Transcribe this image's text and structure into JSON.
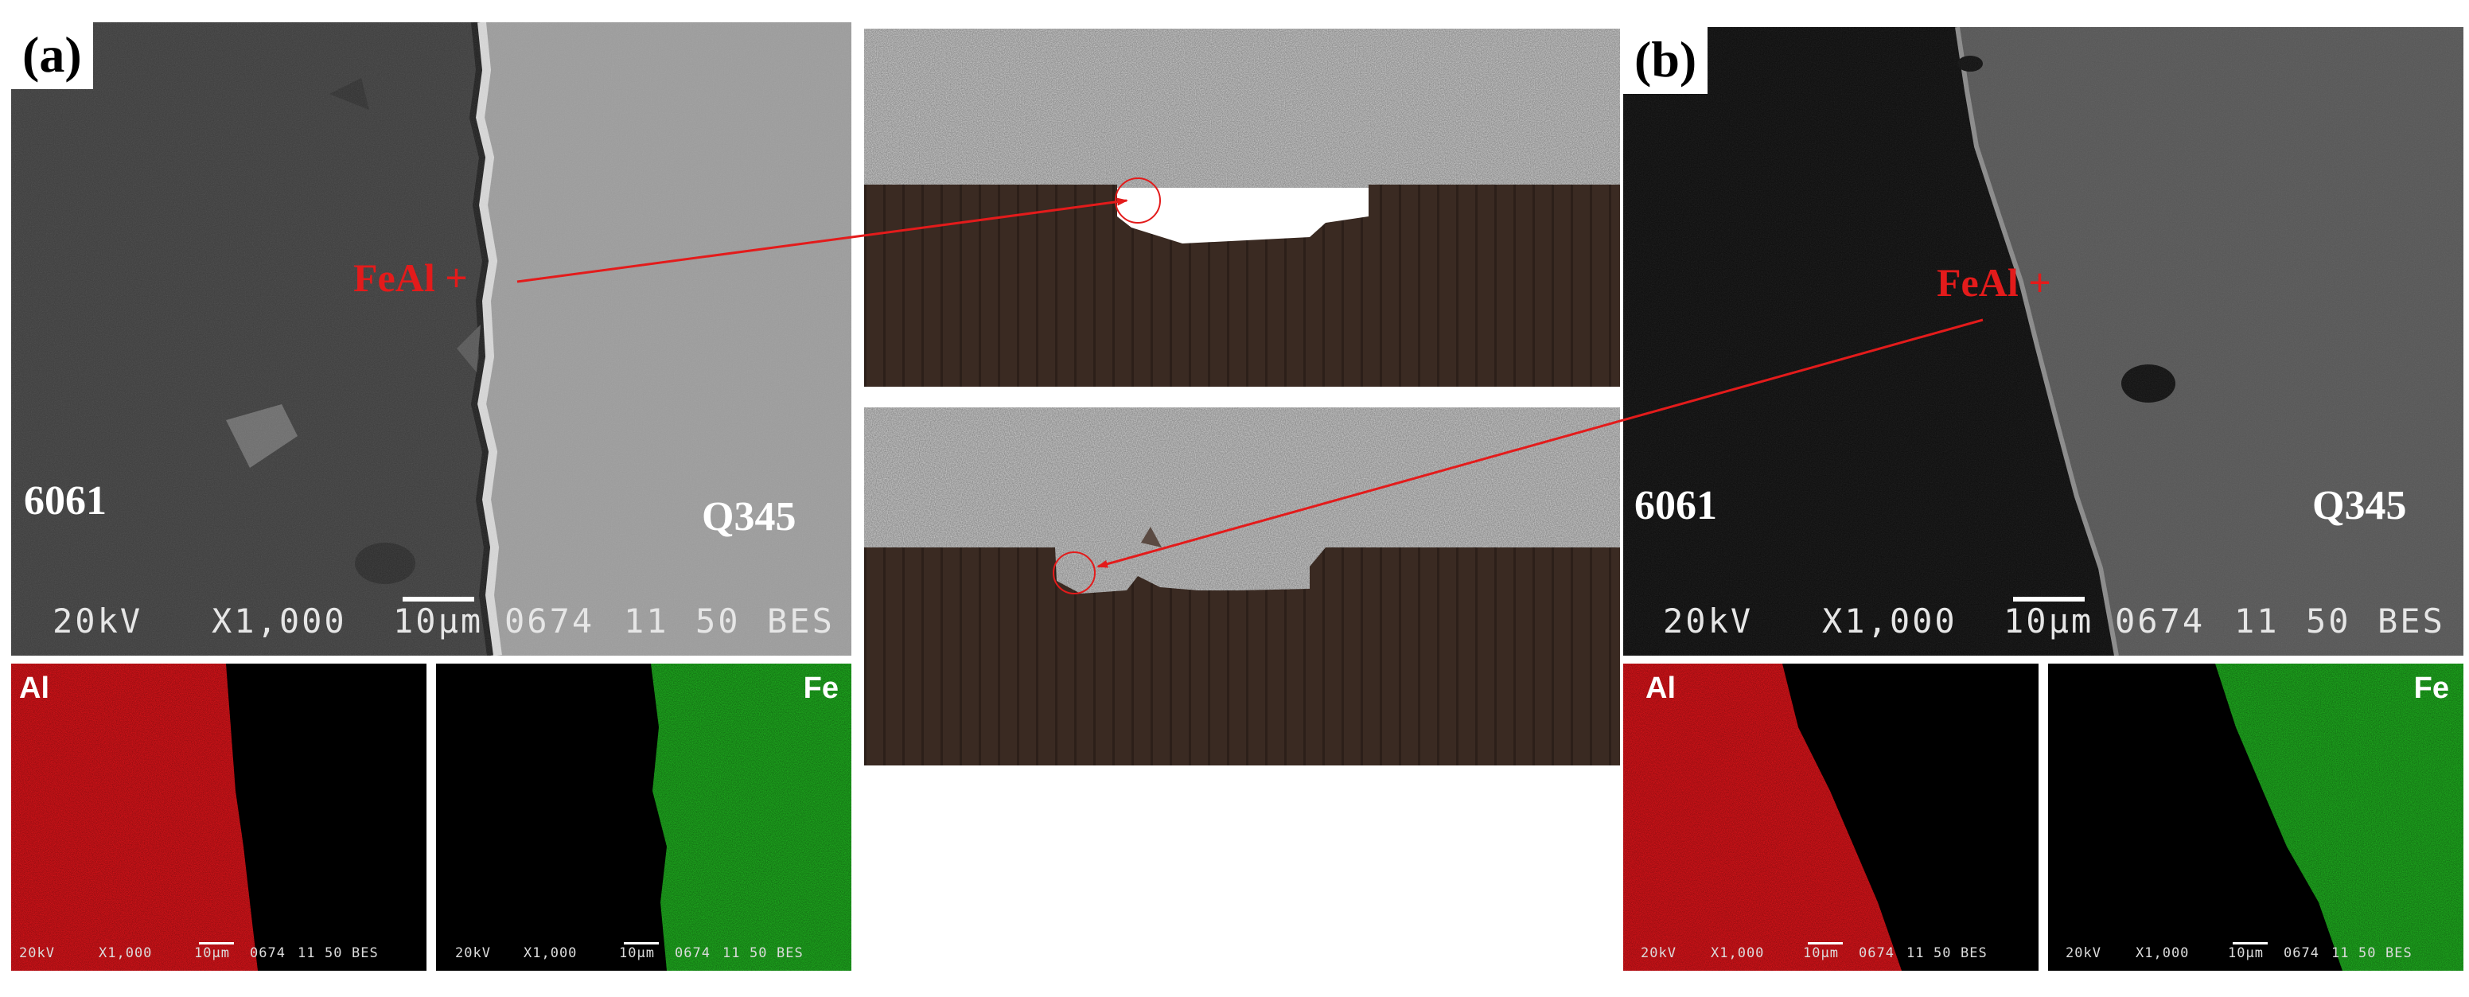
{
  "panel_a": {
    "tag": "(a)",
    "left_material": "6061",
    "right_material": "Q345",
    "phase_label": "FeAl",
    "sem_info": {
      "kv": "20kV",
      "mag": "X1,000",
      "scale": "10μm",
      "code": "0674",
      "n1": "11",
      "n2": "50",
      "mode": "BES"
    },
    "map_al": {
      "element": "Al",
      "info": {
        "kv": "20kV",
        "mag": "X1,000",
        "scale": "10μm",
        "code": "0674",
        "n1": "11",
        "n2": "50",
        "mode": "BES"
      }
    },
    "map_fe": {
      "element": "Fe",
      "info": {
        "kv": "20kV",
        "mag": "X1,000",
        "scale": "10μm",
        "code": "0674",
        "n1": "11",
        "n2": "50",
        "mode": "BES"
      }
    }
  },
  "panel_b": {
    "tag": "(b)",
    "left_material": "6061",
    "right_material": "Q345",
    "phase_label": "FeAl",
    "sem_info": {
      "kv": "20kV",
      "mag": "X1,000",
      "scale": "10μm",
      "code": "0674",
      "n1": "11",
      "n2": "50",
      "mode": "BES"
    },
    "map_al": {
      "element": "Al",
      "info": {
        "kv": "20kV",
        "mag": "X1,000",
        "scale": "10μm",
        "code": "0674",
        "n1": "11",
        "n2": "50",
        "mode": "BES"
      }
    },
    "map_fe": {
      "element": "Fe",
      "info": {
        "kv": "20kV",
        "mag": "X1,000",
        "scale": "10μm",
        "code": "0674",
        "n1": "11",
        "n2": "50",
        "mode": "BES"
      }
    }
  },
  "colors": {
    "annotation_red": "#e31b1b",
    "al_map": "#e0141a",
    "fe_map": "#1fae1f",
    "om_steel": "#b9b9b9",
    "om_aluminum": "#3a2a22"
  }
}
